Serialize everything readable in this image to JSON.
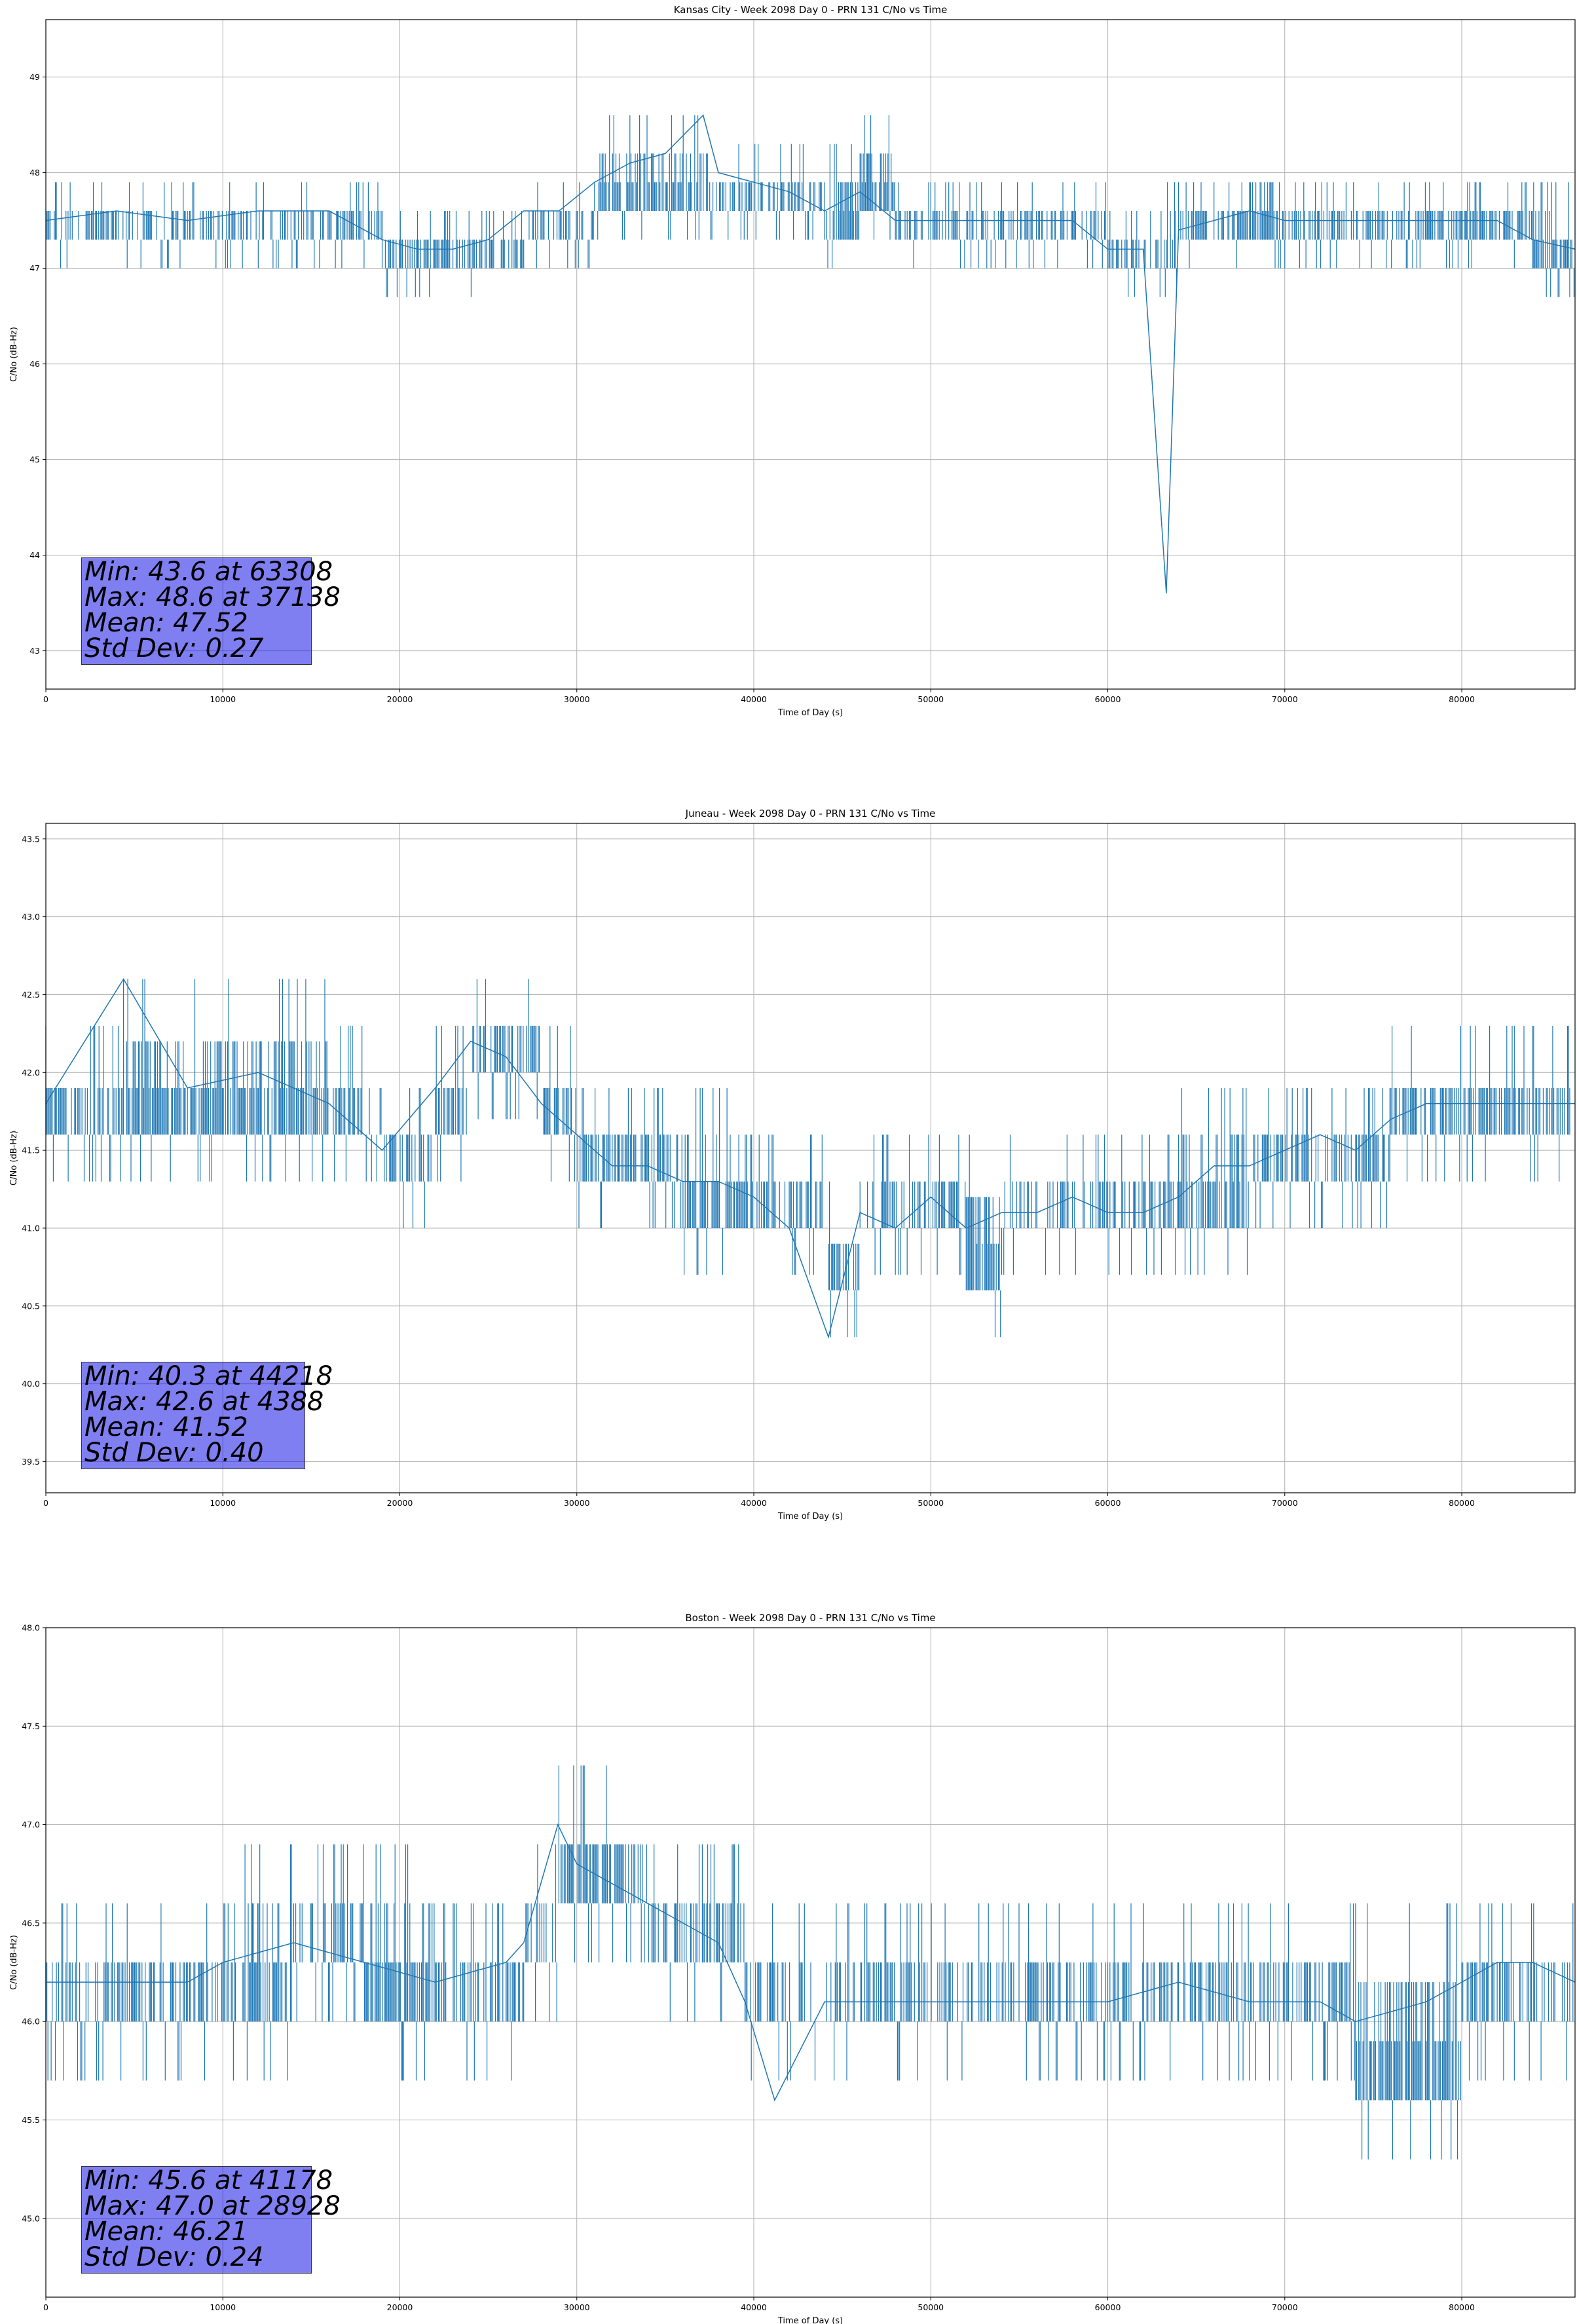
{
  "chart_data": [
    {
      "type": "line",
      "title": "Kansas City - Week 2098 Day 0 - PRN 131 C/No vs Time",
      "xlabel": "Time of Day (s)",
      "ylabel": "C/No (dB-Hz)",
      "xlim": [
        0,
        86400
      ],
      "ylim": [
        42.6,
        49.6
      ],
      "xticks": [
        0,
        10000,
        20000,
        30000,
        40000,
        50000,
        60000,
        70000,
        80000
      ],
      "yticks": [
        "43",
        "44",
        "45",
        "46",
        "47",
        "48",
        "49"
      ],
      "grid": true,
      "color": "#1f77b4",
      "series": [
        {
          "name": "",
          "x": [
            0,
            4000,
            8000,
            12000,
            16000,
            19000,
            21000,
            23000,
            25000,
            27000,
            29000,
            31000,
            33000,
            35000,
            37138,
            38000,
            40000,
            42000,
            44000,
            46000,
            48000,
            50000,
            54000,
            58000,
            60000,
            62000,
            63308,
            64000,
            66000,
            68000,
            70000,
            74000,
            78000,
            82000,
            84000,
            86400
          ],
          "y": [
            47.5,
            47.6,
            47.5,
            47.6,
            47.6,
            47.3,
            47.2,
            47.2,
            47.3,
            47.6,
            47.6,
            47.9,
            48.1,
            48.2,
            48.6,
            48.0,
            47.9,
            47.8,
            47.6,
            47.8,
            47.5,
            47.5,
            47.5,
            47.5,
            47.2,
            47.2,
            43.6,
            47.4,
            47.5,
            47.6,
            47.5,
            47.5,
            47.5,
            47.5,
            47.3,
            47.2
          ],
          "band": [
            [
              47.3,
              47.6
            ],
            [
              47.3,
              47.6
            ],
            [
              47.3,
              47.6
            ],
            [
              47.3,
              47.6
            ],
            [
              47.3,
              47.6
            ],
            [
              47.0,
              47.3
            ],
            [
              47.0,
              47.3
            ],
            [
              47.0,
              47.3
            ],
            [
              47.0,
              47.3
            ],
            [
              47.3,
              47.6
            ],
            [
              47.3,
              47.6
            ],
            [
              47.6,
              48.3
            ],
            [
              47.6,
              48.3
            ],
            [
              47.6,
              48.3
            ],
            [
              47.6,
              48.3
            ],
            [
              47.6,
              48.0
            ],
            [
              47.6,
              48.0
            ],
            [
              47.6,
              48.0
            ],
            [
              47.3,
              48.0
            ],
            [
              47.6,
              48.3
            ],
            [
              47.3,
              47.6
            ],
            [
              47.3,
              47.6
            ],
            [
              47.3,
              47.6
            ],
            [
              47.3,
              47.6
            ],
            [
              47.0,
              47.3
            ],
            [
              47.0,
              47.3
            ],
            [
              47.0,
              47.6
            ],
            [
              47.3,
              47.6
            ],
            [
              47.3,
              47.6
            ],
            [
              47.3,
              48.0
            ],
            [
              47.3,
              47.6
            ],
            [
              47.3,
              47.6
            ],
            [
              47.3,
              47.6
            ],
            [
              47.3,
              47.6
            ],
            [
              47.0,
              47.6
            ],
            [
              47.0,
              47.3
            ]
          ]
        }
      ],
      "stats": [
        "Min: 43.6 at 63308",
        "Max: 48.6 at 37138",
        "Mean: 47.52",
        "Std Dev: 0.27"
      ]
    },
    {
      "type": "line",
      "title": "Juneau - Week 2098 Day 0 - PRN 131 C/No vs Time",
      "xlabel": "Time of Day (s)",
      "ylabel": "C/No (dB-Hz)",
      "xlim": [
        0,
        86400
      ],
      "ylim": [
        39.3,
        43.6
      ],
      "xticks": [
        0,
        10000,
        20000,
        30000,
        40000,
        50000,
        60000,
        70000,
        80000
      ],
      "yticks": [
        "39.5",
        "40.0",
        "40.5",
        "41.0",
        "41.5",
        "42.0",
        "42.5",
        "43.0",
        "43.5"
      ],
      "grid": true,
      "color": "#1f77b4",
      "series": [
        {
          "name": "",
          "x": [
            0,
            4388,
            8000,
            12000,
            16000,
            19000,
            22000,
            24000,
            26000,
            28000,
            30000,
            32000,
            34000,
            36000,
            38000,
            40000,
            42000,
            44218,
            46000,
            48000,
            50000,
            52000,
            54000,
            56000,
            58000,
            60000,
            62000,
            64000,
            66000,
            68000,
            70000,
            72000,
            74000,
            76000,
            78000,
            80000,
            82000,
            84000,
            86400
          ],
          "y": [
            41.8,
            42.6,
            41.9,
            42.0,
            41.8,
            41.5,
            41.9,
            42.2,
            42.1,
            41.8,
            41.6,
            41.4,
            41.4,
            41.3,
            41.3,
            41.2,
            41.0,
            40.3,
            41.1,
            41.0,
            41.2,
            41.0,
            41.1,
            41.1,
            41.2,
            41.1,
            41.1,
            41.2,
            41.4,
            41.4,
            41.5,
            41.6,
            41.5,
            41.7,
            41.8,
            41.8,
            41.8,
            41.8,
            41.8
          ],
          "band": [
            [
              41.6,
              42.0
            ],
            [
              41.6,
              42.3
            ],
            [
              41.6,
              42.3
            ],
            [
              41.6,
              42.3
            ],
            [
              41.6,
              42.0
            ],
            [
              41.3,
              41.6
            ],
            [
              41.6,
              42.0
            ],
            [
              42.0,
              42.3
            ],
            [
              42.0,
              42.3
            ],
            [
              41.6,
              42.0
            ],
            [
              41.3,
              41.6
            ],
            [
              41.3,
              41.6
            ],
            [
              41.3,
              41.6
            ],
            [
              41.0,
              41.6
            ],
            [
              41.0,
              41.6
            ],
            [
              41.0,
              41.3
            ],
            [
              41.0,
              41.3
            ],
            [
              40.6,
              41.0
            ],
            [
              41.0,
              41.3
            ],
            [
              41.0,
              41.3
            ],
            [
              41.0,
              41.3
            ],
            [
              40.6,
              41.3
            ],
            [
              41.0,
              41.3
            ],
            [
              41.0,
              41.3
            ],
            [
              41.0,
              41.3
            ],
            [
              41.0,
              41.3
            ],
            [
              41.0,
              41.3
            ],
            [
              41.0,
              41.6
            ],
            [
              41.0,
              41.6
            ],
            [
              41.3,
              41.6
            ],
            [
              41.3,
              41.6
            ],
            [
              41.3,
              41.6
            ],
            [
              41.3,
              41.6
            ],
            [
              41.6,
              42.0
            ],
            [
              41.6,
              42.0
            ],
            [
              41.6,
              42.0
            ],
            [
              41.6,
              42.0
            ],
            [
              41.6,
              42.0
            ],
            [
              41.6,
              42.0
            ]
          ]
        }
      ],
      "stats": [
        "Min: 40.3 at 44218",
        "Max: 42.6 at 4388",
        "Mean: 41.52",
        "Std Dev: 0.40"
      ]
    },
    {
      "type": "line",
      "title": "Boston - Week 2098 Day 0 - PRN 131 C/No vs Time",
      "xlabel": "Time of Day (s)",
      "ylabel": "C/No (dB-Hz)",
      "xlim": [
        0,
        86400
      ],
      "ylim": [
        44.6,
        48.0
      ],
      "xticks": [
        0,
        10000,
        20000,
        30000,
        40000,
        50000,
        60000,
        70000,
        80000
      ],
      "yticks": [
        "45.0",
        "45.5",
        "46.0",
        "46.5",
        "47.0",
        "47.5",
        "48.0"
      ],
      "grid": true,
      "color": "#1f77b4",
      "series": [
        {
          "name": "",
          "x": [
            0,
            4000,
            8000,
            10000,
            14000,
            18000,
            22000,
            26000,
            27000,
            28928,
            30000,
            34000,
            36000,
            38000,
            39500,
            41178,
            44000,
            48000,
            52000,
            56000,
            60000,
            64000,
            68000,
            72000,
            74000,
            78000,
            80000,
            82000,
            84000,
            86400
          ],
          "y": [
            46.2,
            46.2,
            46.2,
            46.3,
            46.4,
            46.3,
            46.2,
            46.3,
            46.4,
            47.0,
            46.8,
            46.6,
            46.5,
            46.4,
            46.1,
            45.6,
            46.1,
            46.1,
            46.1,
            46.1,
            46.1,
            46.2,
            46.1,
            46.1,
            46.0,
            46.1,
            46.2,
            46.3,
            46.3,
            46.2
          ],
          "band": [
            [
              46.0,
              46.3
            ],
            [
              46.0,
              46.3
            ],
            [
              46.0,
              46.3
            ],
            [
              46.0,
              46.6
            ],
            [
              46.3,
              46.6
            ],
            [
              46.0,
              46.6
            ],
            [
              46.0,
              46.3
            ],
            [
              46.0,
              46.3
            ],
            [
              46.3,
              46.6
            ],
            [
              46.6,
              47.0
            ],
            [
              46.6,
              47.0
            ],
            [
              46.3,
              46.6
            ],
            [
              46.3,
              46.6
            ],
            [
              46.3,
              46.6
            ],
            [
              46.0,
              46.3
            ],
            [
              46.0,
              46.3
            ],
            [
              46.0,
              46.3
            ],
            [
              46.0,
              46.3
            ],
            [
              46.0,
              46.3
            ],
            [
              46.0,
              46.3
            ],
            [
              46.0,
              46.3
            ],
            [
              46.0,
              46.3
            ],
            [
              46.0,
              46.3
            ],
            [
              46.0,
              46.3
            ],
            [
              45.6,
              46.3
            ],
            [
              45.6,
              46.3
            ],
            [
              46.0,
              46.3
            ],
            [
              46.0,
              46.3
            ],
            [
              46.0,
              46.3
            ],
            [
              46.0,
              46.3
            ]
          ]
        }
      ],
      "stats": [
        "Min: 45.6 at 41178",
        "Max: 47.0 at 28928",
        "Mean: 46.21",
        "Std Dev: 0.24"
      ]
    }
  ]
}
